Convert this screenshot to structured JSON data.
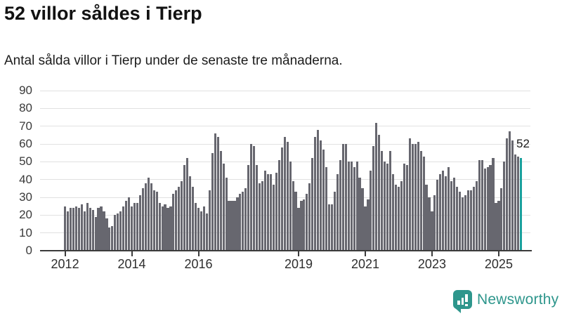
{
  "header": {
    "title": "52 villor såldes i Tierp",
    "subtitle": "Antal sålda villor i Tierp under de senaste tre månaderna."
  },
  "chart_data": {
    "type": "bar",
    "title": "52 villor såldes i Tierp",
    "subtitle": "Antal sålda villor i Tierp under de senaste tre månaderna.",
    "x_start_year": 2012,
    "frequency": "monthly",
    "values": [
      25,
      22,
      24,
      24,
      25,
      24,
      26,
      22,
      27,
      24,
      23,
      19,
      24,
      25,
      22,
      18,
      13,
      14,
      20,
      21,
      22,
      25,
      28,
      30,
      25,
      27,
      27,
      31,
      35,
      38,
      41,
      38,
      34,
      33,
      27,
      25,
      26,
      24,
      25,
      32,
      34,
      36,
      39,
      48,
      52,
      42,
      36,
      27,
      24,
      22,
      25,
      21,
      34,
      55,
      66,
      64,
      56,
      49,
      41,
      28,
      28,
      28,
      30,
      32,
      33,
      35,
      48,
      60,
      59,
      48,
      38,
      39,
      45,
      43,
      43,
      37,
      44,
      51,
      58,
      64,
      61,
      50,
      39,
      33,
      24,
      28,
      29,
      32,
      38,
      52,
      64,
      68,
      62,
      57,
      47,
      26,
      26,
      33,
      43,
      51,
      60,
      60,
      50,
      50,
      47,
      50,
      41,
      35,
      25,
      29,
      45,
      59,
      72,
      65,
      56,
      50,
      49,
      56,
      43,
      37,
      36,
      39,
      49,
      48,
      63,
      60,
      60,
      61,
      56,
      53,
      37,
      30,
      22,
      31,
      40,
      43,
      45,
      42,
      47,
      39,
      41,
      36,
      33,
      30,
      31,
      34,
      34,
      36,
      39,
      51,
      51,
      46,
      47,
      48,
      52,
      27,
      28,
      35,
      50,
      63,
      67,
      62,
      54,
      53,
      52
    ],
    "highlight_last_index": 164,
    "annotation": {
      "text": "52"
    },
    "y_ticks": [
      0,
      10,
      20,
      30,
      40,
      50,
      60,
      70,
      80,
      90
    ],
    "ylim": [
      0,
      90
    ],
    "x_tick_years": [
      2012,
      2014,
      2016,
      2019,
      2021,
      2023,
      2025
    ],
    "grid": true,
    "legend": "none",
    "bar_color": "#67676f",
    "highlight_color": "#18a09c",
    "grid_color": "#e1e1e1",
    "axis_color": "#3b3b3b"
  },
  "footer": {
    "brand": "Newsworthy",
    "brand_color": "#2e968c",
    "logo_icon": "bar-chart-exclamation-icon"
  }
}
